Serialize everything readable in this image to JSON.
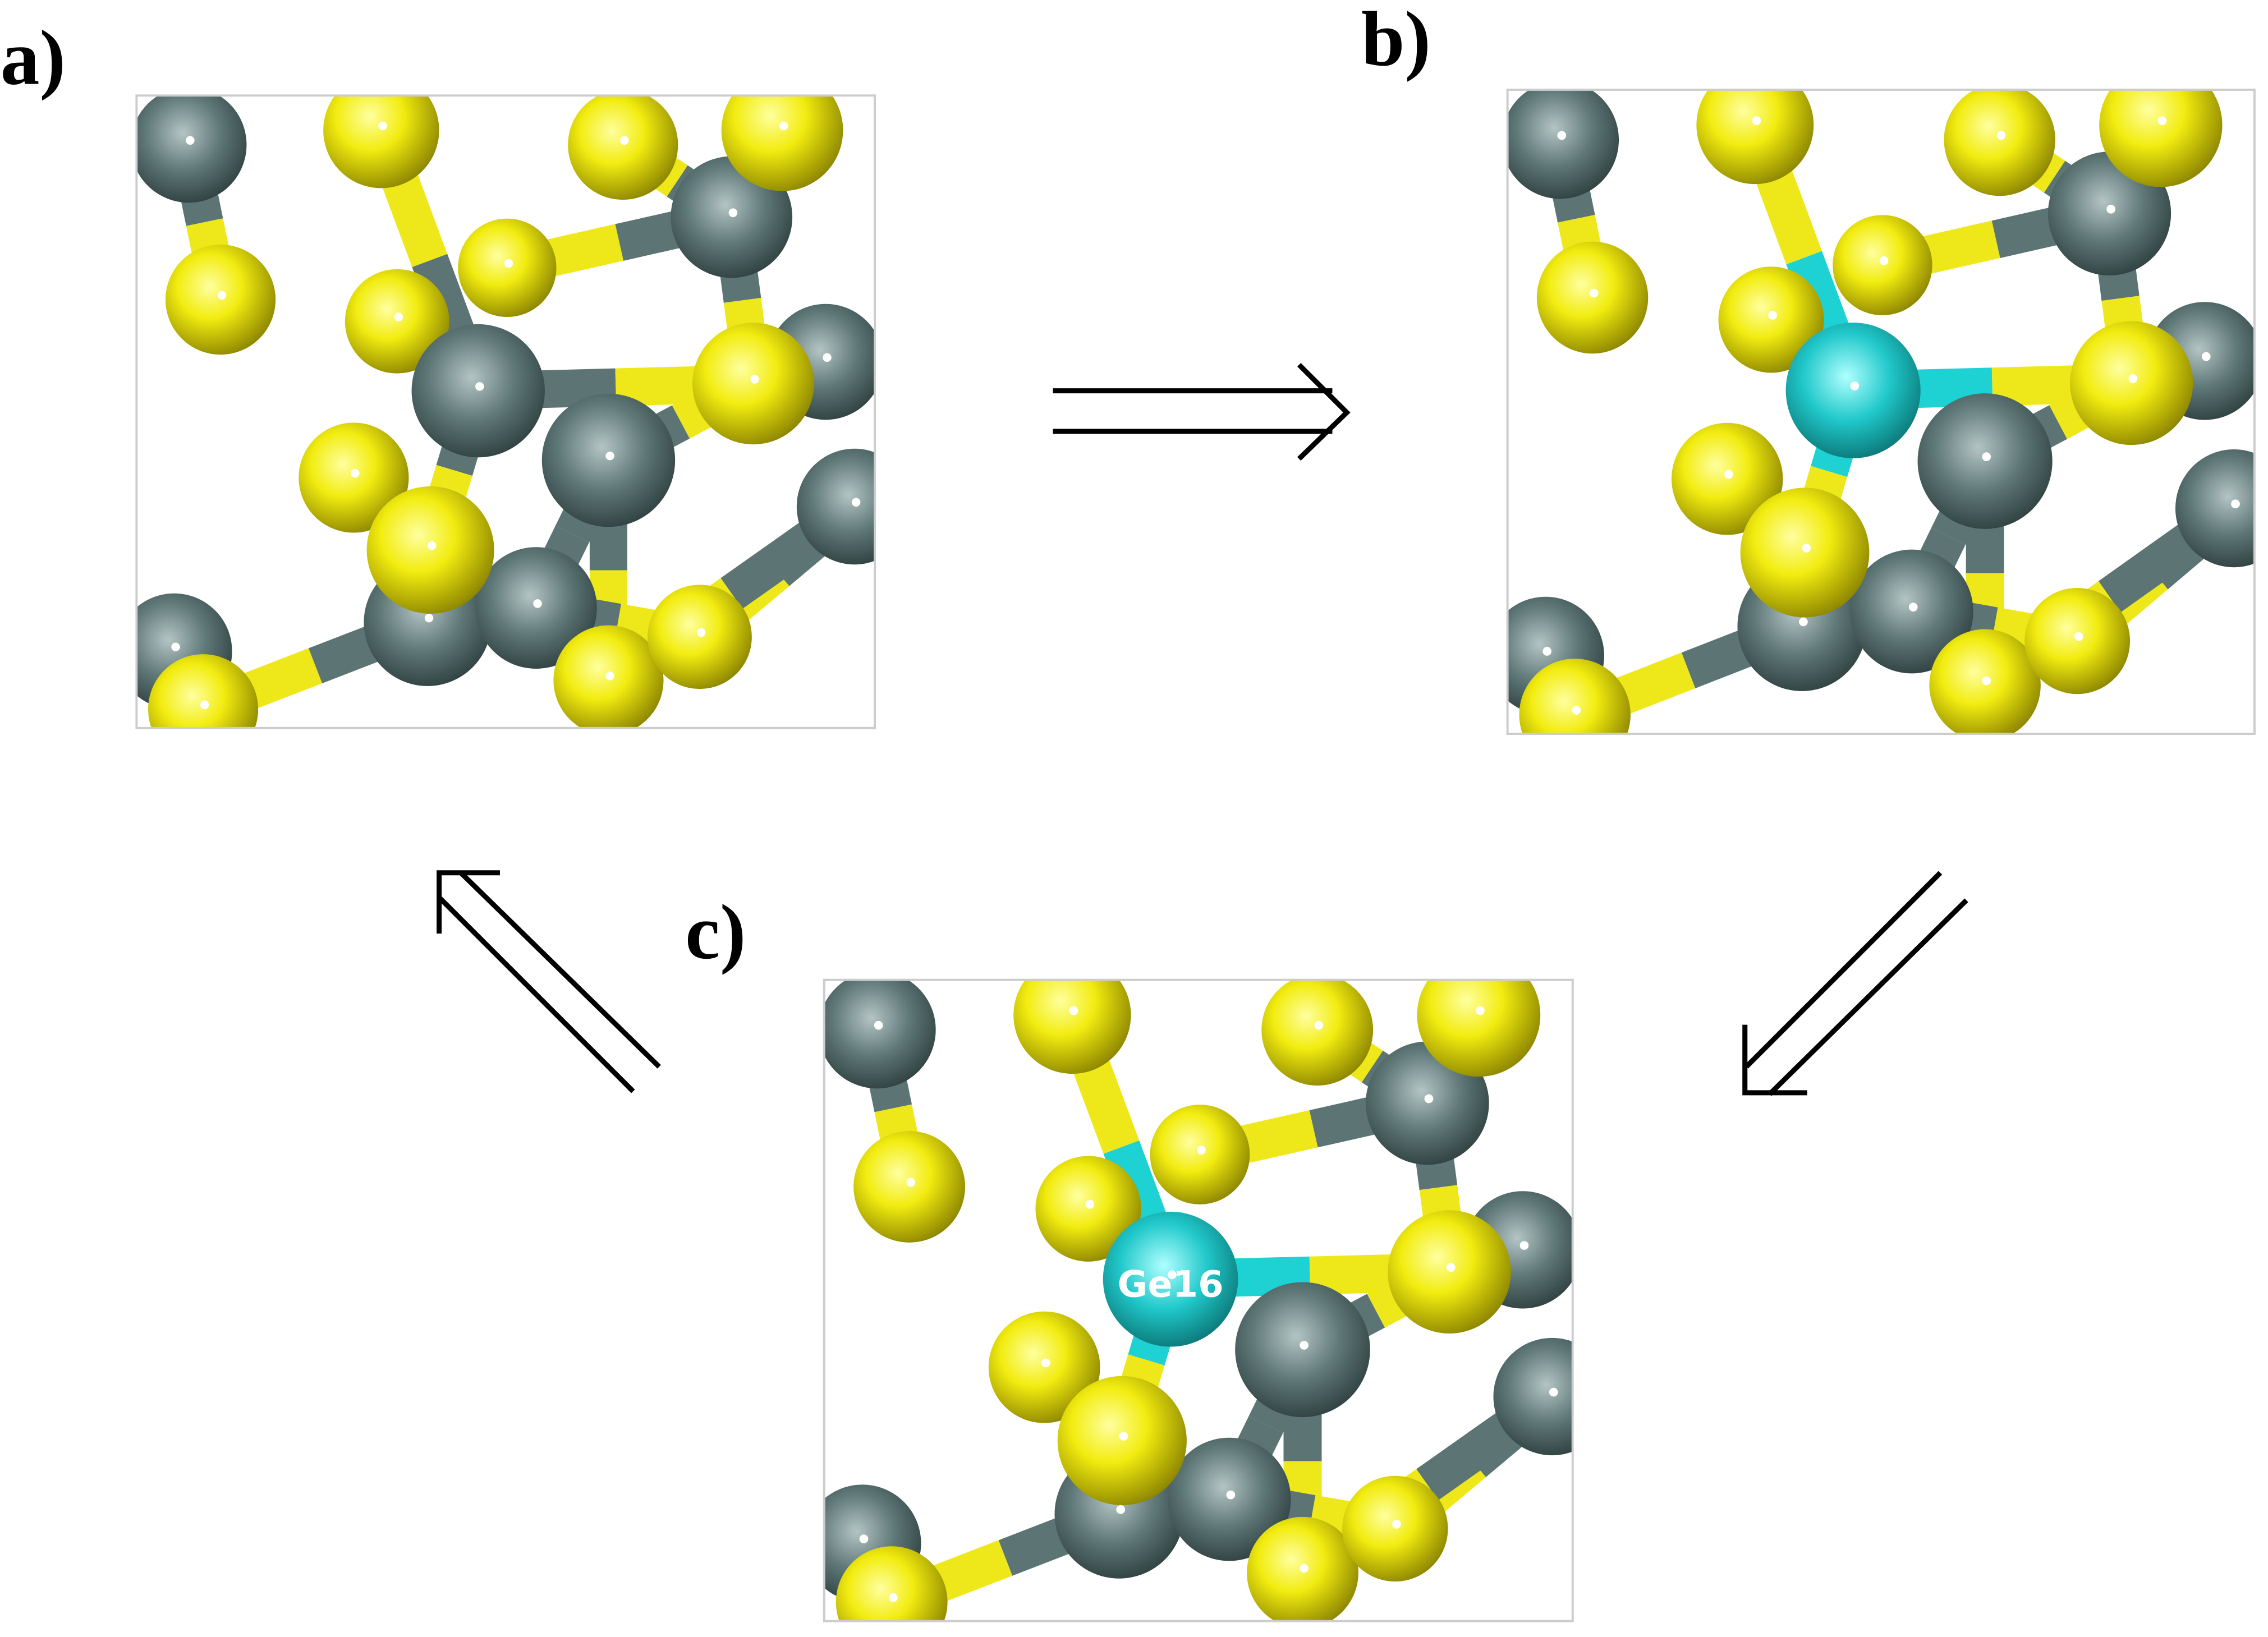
{
  "panels": [
    {
      "label": "a)"
    },
    {
      "label": "b)"
    },
    {
      "label": "c)",
      "annotation": "Ge16"
    }
  ]
}
